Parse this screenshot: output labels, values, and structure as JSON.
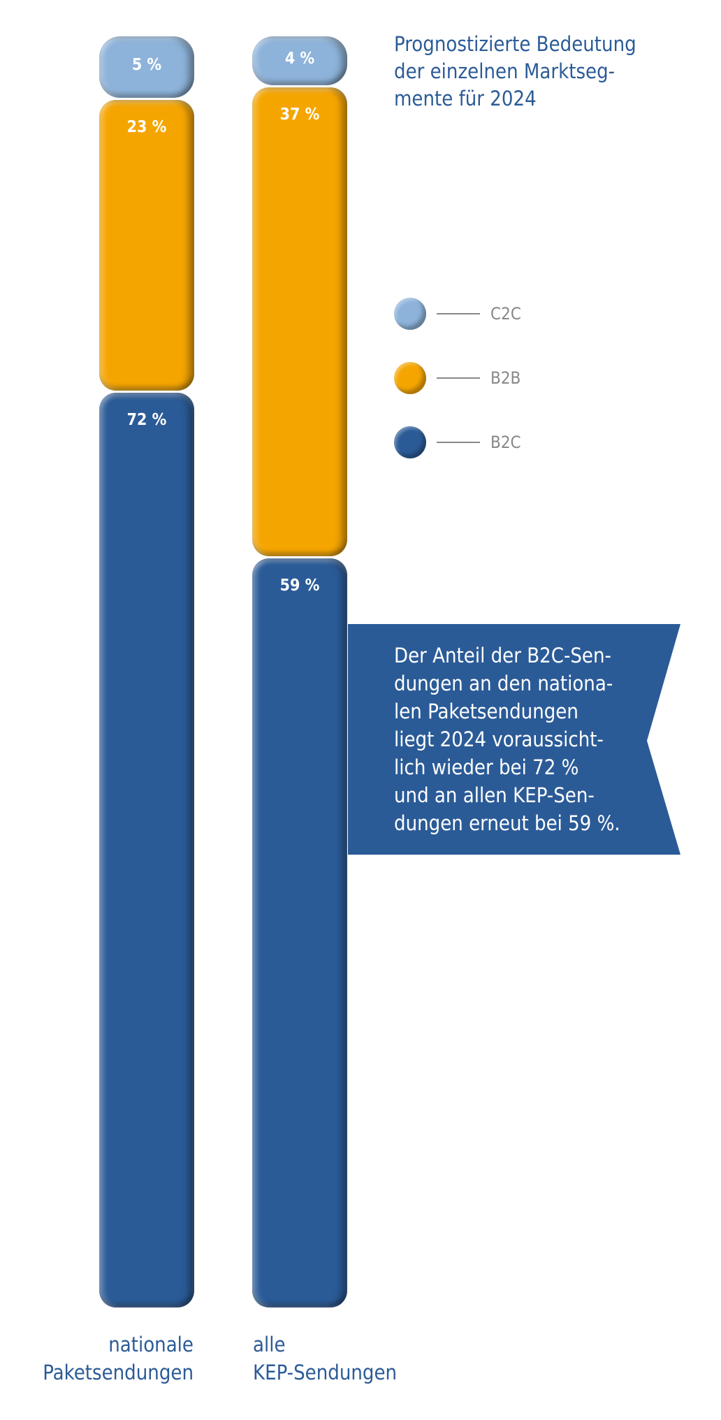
{
  "chart_data": {
    "type": "bar",
    "stacked": true,
    "title": "Prognostizierte Bedeutung\nder einzelnen Marktseg-\nmente für 2024",
    "categories": [
      "nationale\nPaketsendungen",
      "alle\nKEP-Sendungen"
    ],
    "series": [
      {
        "name": "B2C",
        "color": "#2b5b97",
        "values": [
          72,
          59
        ],
        "labels": [
          "72 %",
          "59 %"
        ]
      },
      {
        "name": "B2B",
        "color": "#f5a500",
        "values": [
          23,
          37
        ],
        "labels": [
          "23 %",
          "37 %"
        ]
      },
      {
        "name": "C2C",
        "color": "#8db3da",
        "values": [
          5,
          4
        ],
        "labels": [
          "5 %",
          "4 %"
        ]
      }
    ],
    "legend": [
      "C2C",
      "B2B",
      "B2C"
    ],
    "annotation": "Der Anteil der B2C-Sen-\ndungen an den nationa-\nlen Paketsendungen\nliegt 2024 voraussicht-\nlich wieder bei 72 %\nund an allen KEP-Sen-\ndungen erneut bei 59 %.",
    "ylim": [
      0,
      100
    ]
  }
}
